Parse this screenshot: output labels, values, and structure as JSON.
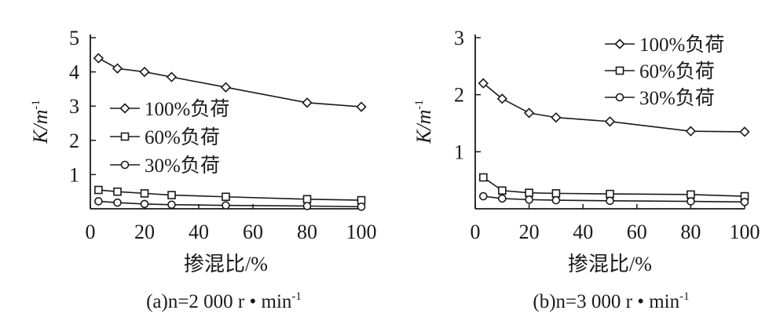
{
  "chart_data": [
    {
      "type": "line",
      "caption": "(a)n=2 000 r • min",
      "caption_sup": "-1",
      "xlabel": "掺混比/%",
      "ylabel": "K/m",
      "ylabel_sup": "-1",
      "xlim": [
        0,
        100
      ],
      "ylim": [
        0,
        5
      ],
      "x_ticks": [
        0,
        20,
        40,
        60,
        80,
        100
      ],
      "y_ticks": [
        1,
        2,
        3,
        4,
        5
      ],
      "legend_position": "middle-left",
      "series": [
        {
          "name": "100%负荷",
          "marker": "diamond",
          "x": [
            3,
            10,
            20,
            30,
            50,
            80,
            100
          ],
          "y": [
            4.4,
            4.1,
            4.0,
            3.85,
            3.55,
            3.1,
            2.98
          ]
        },
        {
          "name": "60%负荷",
          "marker": "square",
          "x": [
            3,
            10,
            20,
            30,
            50,
            80,
            100
          ],
          "y": [
            0.55,
            0.5,
            0.45,
            0.4,
            0.35,
            0.28,
            0.25
          ]
        },
        {
          "name": "30%负荷",
          "marker": "circle",
          "x": [
            3,
            10,
            20,
            30,
            50,
            80,
            100
          ],
          "y": [
            0.22,
            0.18,
            0.14,
            0.12,
            0.1,
            0.08,
            0.06
          ]
        }
      ]
    },
    {
      "type": "line",
      "caption": "(b)n=3 000 r • min",
      "caption_sup": "-1",
      "xlabel": "掺混比/%",
      "ylabel": "K/m",
      "ylabel_sup": "-1",
      "xlim": [
        0,
        100
      ],
      "ylim": [
        0,
        3
      ],
      "x_ticks": [
        0,
        20,
        40,
        60,
        80,
        100
      ],
      "y_ticks": [
        1,
        2,
        3
      ],
      "legend_position": "top-right",
      "series": [
        {
          "name": "100%负荷",
          "marker": "diamond",
          "x": [
            3,
            10,
            20,
            30,
            50,
            80,
            100
          ],
          "y": [
            2.2,
            1.93,
            1.68,
            1.6,
            1.53,
            1.36,
            1.35
          ]
        },
        {
          "name": "60%负荷",
          "marker": "square",
          "x": [
            3,
            10,
            20,
            30,
            50,
            80,
            100
          ],
          "y": [
            0.55,
            0.32,
            0.28,
            0.27,
            0.26,
            0.25,
            0.22
          ]
        },
        {
          "name": "30%负荷",
          "marker": "circle",
          "x": [
            3,
            10,
            20,
            30,
            50,
            80,
            100
          ],
          "y": [
            0.22,
            0.18,
            0.16,
            0.15,
            0.14,
            0.13,
            0.12
          ]
        }
      ]
    }
  ]
}
